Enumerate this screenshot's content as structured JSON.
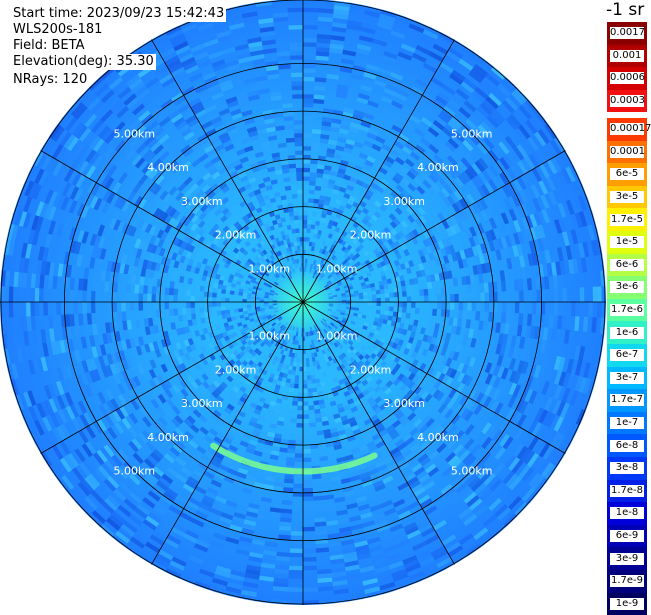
{
  "header": {
    "start_time": "Start time: 2023/09/23 15:42:43",
    "instrument": "WLS200s-181",
    "field": "Field: BETA",
    "elevation": "Elevation(deg): 35.30",
    "nrays": "NRays: 120"
  },
  "colorbar": {
    "unit_label": "-1 sr",
    "upper_labels": [
      "0.0017",
      "0.001",
      "0.0006",
      "0.0003"
    ],
    "upper_colors": [
      "#8b0000",
      "#b00000",
      "#d40000",
      "#f21010"
    ],
    "lower_labels": [
      "0.00017",
      "0.0001",
      "6e-5",
      "3e-5",
      "1.7e-5",
      "1e-5",
      "6e-6",
      "3e-6",
      "1.7e-6",
      "1e-6",
      "6e-7",
      "3e-7",
      "1.7e-7",
      "1e-7",
      "6e-8",
      "3e-8",
      "1.7e-8",
      "1e-8",
      "6e-9",
      "3e-9",
      "1.7e-9",
      "1e-9"
    ],
    "lower_colors": [
      "#ff3a00",
      "#ff7000",
      "#ff9e00",
      "#ffc800",
      "#fff000",
      "#e0ff10",
      "#b2ff45",
      "#86ff73",
      "#5cffa0",
      "#30f0c8",
      "#10d8ef",
      "#00b8ff",
      "#0098ff",
      "#0078ff",
      "#0058ff",
      "#0038f8",
      "#0020e8",
      "#0000d8",
      "#0000b4",
      "#000094",
      "#00007a",
      "#000060"
    ]
  },
  "range_rings": {
    "labels": [
      "1.00km",
      "2.00km",
      "3.00km",
      "4.00km",
      "5.00km"
    ],
    "ranges_km": [
      1,
      2,
      3,
      4,
      5
    ],
    "max_range_km": 6.35
  },
  "azimuth_lines_deg": [
    0,
    30,
    60,
    90,
    120,
    150,
    180,
    210,
    240,
    270,
    300,
    330
  ],
  "map_colors": {
    "background_field": "#1f7fff",
    "near_field": "#2ab8ff",
    "center": "#40ffd0",
    "aerosol_arc": "#7aff90"
  }
}
